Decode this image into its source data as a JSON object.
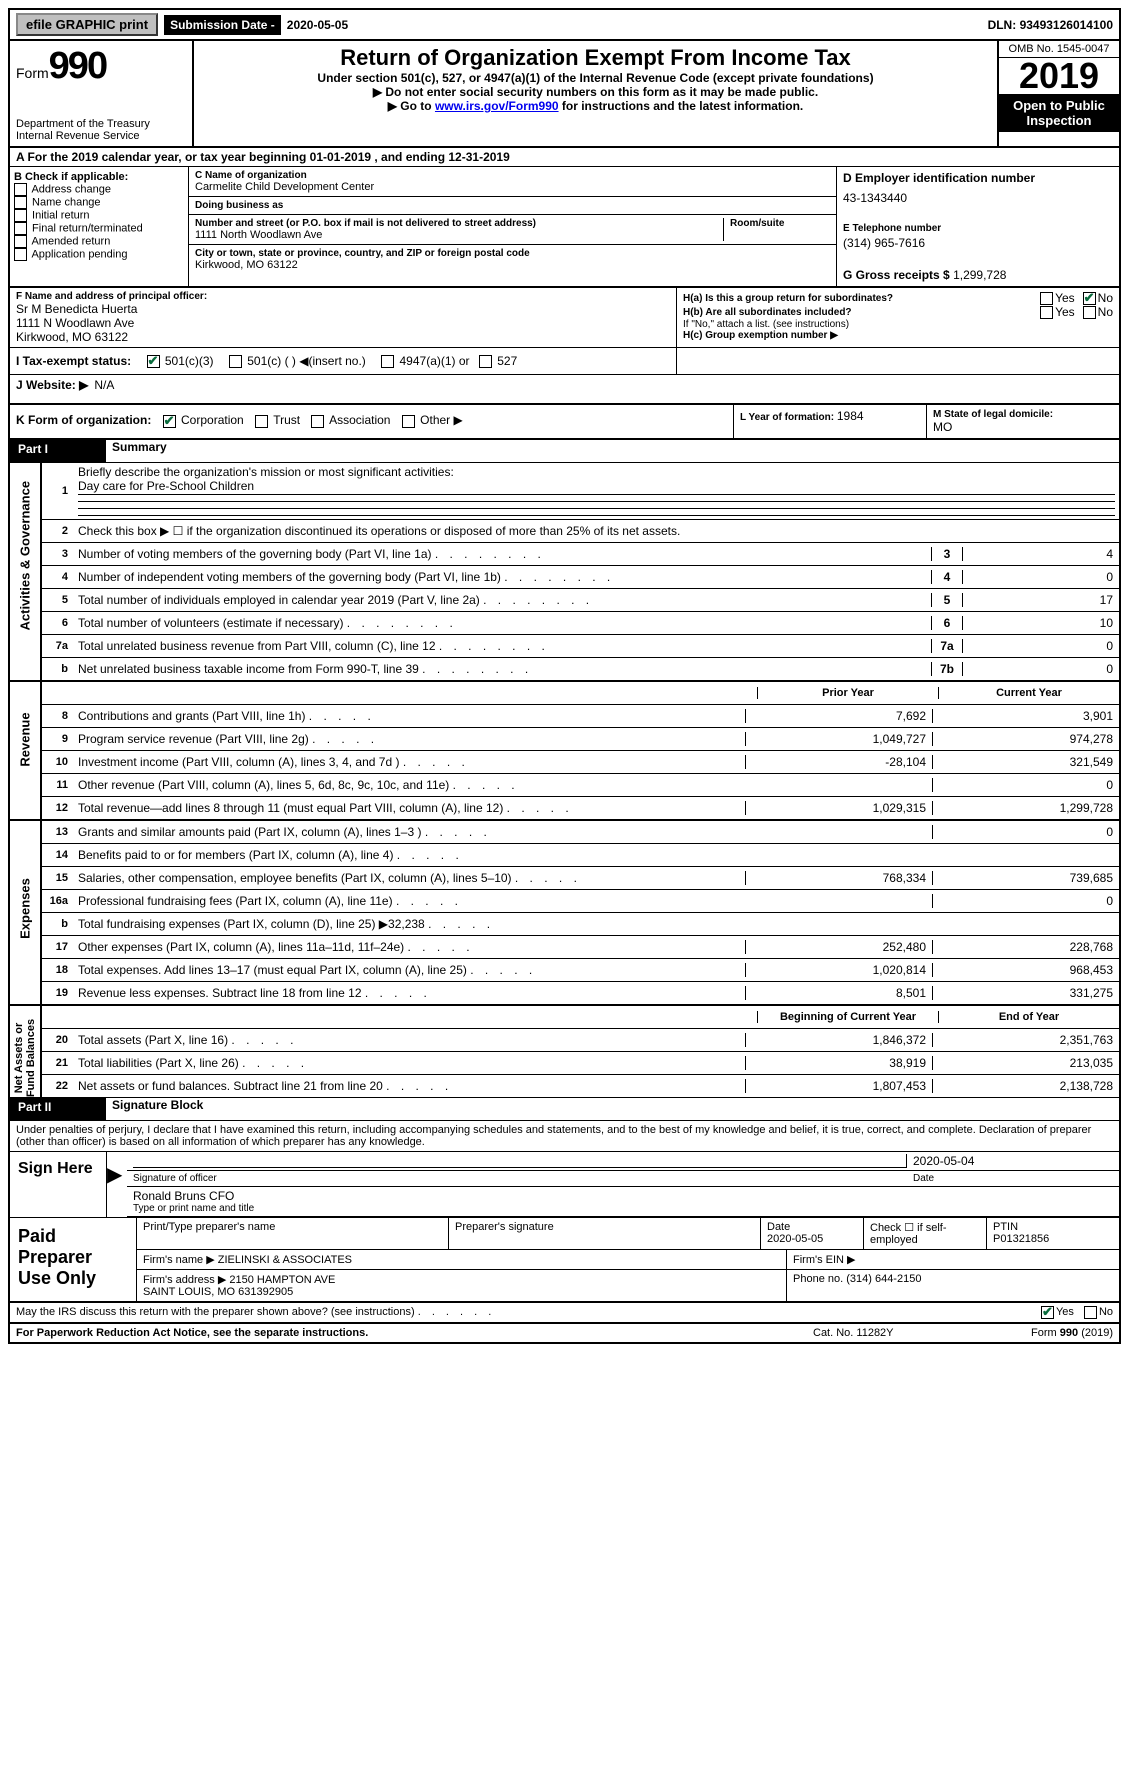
{
  "topbar": {
    "efile_label": "efile GRAPHIC print",
    "sub_date_label": "Submission Date - ",
    "sub_date_value": "2020-05-05",
    "dln_label": "DLN: ",
    "dln_value": "93493126014100"
  },
  "header": {
    "form_label": "Form",
    "form_no": "990",
    "dept": "Department of the Treasury\nInternal Revenue Service",
    "title": "Return of Organization Exempt From Income Tax",
    "subtitle": "Under section 501(c), 527, or 4947(a)(1) of the Internal Revenue Code (except private foundations)",
    "note1": "▶ Do not enter social security numbers on this form as it may be made public.",
    "note2_pre": "▶ Go to ",
    "note2_link": "www.irs.gov/Form990",
    "note2_post": " for instructions and the latest information.",
    "omb": "OMB No. 1545-0047",
    "year": "2019",
    "open_public": "Open to Public Inspection"
  },
  "line_a": "A   For the 2019 calendar year, or tax year beginning 01-01-2019    , and ending 12-31-2019",
  "section_b": {
    "label": "B Check if applicable:",
    "options": [
      "Address change",
      "Name change",
      "Initial return",
      "Final return/terminated",
      "Amended return",
      "Application pending"
    ],
    "c_label": "C Name of organization",
    "org_name": "Carmelite Child Development Center",
    "dba_label": "Doing business as",
    "dba": "",
    "street_label": "Number and street (or P.O. box if mail is not delivered to street address)",
    "room_label": "Room/suite",
    "street": "1111 North Woodlawn Ave",
    "city_label": "City or town, state or province, country, and ZIP or foreign postal code",
    "city": "Kirkwood, MO  63122",
    "d_label": "D Employer identification number",
    "ein": "43-1343440",
    "e_label": "E Telephone number",
    "phone": "(314) 965-7616",
    "g_label": "G Gross receipts $ ",
    "gross": "1,299,728"
  },
  "section_f": {
    "f_label": "F  Name and address of principal officer:",
    "officer": "Sr M Benedicta Huerta\n1111 N Woodlawn Ave\nKirkwood, MO  63122",
    "ha_label": "H(a)  Is this a group return for subordinates?",
    "ha_yes": "Yes",
    "ha_no": "No",
    "hb_label": "H(b)  Are all subordinates included?",
    "hb_yes": "Yes",
    "hb_no": "No",
    "hb_note": "If \"No,\" attach a list. (see instructions)",
    "hc_label": "H(c)  Group exemption number ▶"
  },
  "section_i": {
    "label": "I   Tax-exempt status:",
    "opt_501c3": "501(c)(3)",
    "opt_501c": "501(c) (  ) ◀(insert no.)",
    "opt_4947": "4947(a)(1) or",
    "opt_527": "527"
  },
  "section_j": {
    "label": "J   Website: ▶",
    "value": "N/A"
  },
  "section_k": {
    "label": "K Form of organization:",
    "opts": [
      "Corporation",
      "Trust",
      "Association",
      "Other ▶"
    ],
    "l_label": "L Year of formation: ",
    "l_value": "1984",
    "m_label": "M State of legal domicile:",
    "m_value": "MO"
  },
  "parts": {
    "p1_label": "Part I",
    "p1_title": "Summary",
    "p2_label": "Part II",
    "p2_title": "Signature Block"
  },
  "summary": {
    "mission_label": "Briefly describe the organization's mission or most significant activities:",
    "mission": "Day care for Pre-School Children",
    "line2": "Check this box ▶ ☐  if the organization discontinued its operations or disposed of more than 25% of its net assets.",
    "lines_ag": [
      {
        "num": "3",
        "text": "Number of voting members of the governing body (Part VI, line 1a)",
        "box": "3",
        "val": "4"
      },
      {
        "num": "4",
        "text": "Number of independent voting members of the governing body (Part VI, line 1b)",
        "box": "4",
        "val": "0"
      },
      {
        "num": "5",
        "text": "Total number of individuals employed in calendar year 2019 (Part V, line 2a)",
        "box": "5",
        "val": "17"
      },
      {
        "num": "6",
        "text": "Total number of volunteers (estimate if necessary)",
        "box": "6",
        "val": "10"
      },
      {
        "num": "7a",
        "text": "Total unrelated business revenue from Part VIII, column (C), line 12",
        "box": "7a",
        "val": "0"
      },
      {
        "num": "b",
        "text": "Net unrelated business taxable income from Form 990-T, line 39",
        "box": "7b",
        "val": "0"
      }
    ],
    "col_prior": "Prior Year",
    "col_current": "Current Year",
    "revenue": [
      {
        "num": "8",
        "text": "Contributions and grants (Part VIII, line 1h)",
        "prior": "7,692",
        "curr": "3,901"
      },
      {
        "num": "9",
        "text": "Program service revenue (Part VIII, line 2g)",
        "prior": "1,049,727",
        "curr": "974,278"
      },
      {
        "num": "10",
        "text": "Investment income (Part VIII, column (A), lines 3, 4, and 7d )",
        "prior": "-28,104",
        "curr": "321,549"
      },
      {
        "num": "11",
        "text": "Other revenue (Part VIII, column (A), lines 5, 6d, 8c, 9c, 10c, and 11e)",
        "prior": "",
        "curr": "0"
      },
      {
        "num": "12",
        "text": "Total revenue—add lines 8 through 11 (must equal Part VIII, column (A), line 12)",
        "prior": "1,029,315",
        "curr": "1,299,728"
      }
    ],
    "expenses": [
      {
        "num": "13",
        "text": "Grants and similar amounts paid (Part IX, column (A), lines 1–3 )",
        "prior": "",
        "curr": "0"
      },
      {
        "num": "14",
        "text": "Benefits paid to or for members (Part IX, column (A), line 4)",
        "prior": "",
        "curr": ""
      },
      {
        "num": "15",
        "text": "Salaries, other compensation, employee benefits (Part IX, column (A), lines 5–10)",
        "prior": "768,334",
        "curr": "739,685"
      },
      {
        "num": "16a",
        "text": "Professional fundraising fees (Part IX, column (A), line 11e)",
        "prior": "",
        "curr": "0"
      },
      {
        "num": "b",
        "text": "Total fundraising expenses (Part IX, column (D), line 25) ▶32,238",
        "prior": "GREY",
        "curr": "GREY"
      },
      {
        "num": "17",
        "text": "Other expenses (Part IX, column (A), lines 11a–11d, 11f–24e)",
        "prior": "252,480",
        "curr": "228,768"
      },
      {
        "num": "18",
        "text": "Total expenses. Add lines 13–17 (must equal Part IX, column (A), line 25)",
        "prior": "1,020,814",
        "curr": "968,453"
      },
      {
        "num": "19",
        "text": "Revenue less expenses. Subtract line 18 from line 12",
        "prior": "8,501",
        "curr": "331,275"
      }
    ],
    "col_begin": "Beginning of Current Year",
    "col_end": "End of Year",
    "netassets": [
      {
        "num": "20",
        "text": "Total assets (Part X, line 16)",
        "prior": "1,846,372",
        "curr": "2,351,763"
      },
      {
        "num": "21",
        "text": "Total liabilities (Part X, line 26)",
        "prior": "38,919",
        "curr": "213,035"
      },
      {
        "num": "22",
        "text": "Net assets or fund balances. Subtract line 21 from line 20",
        "prior": "1,807,453",
        "curr": "2,138,728"
      }
    ],
    "sidebar_labels": {
      "ag": "Activities & Governance",
      "rev": "Revenue",
      "exp": "Expenses",
      "na": "Net Assets or\nFund Balances"
    }
  },
  "sig": {
    "perjury": "Under penalties of perjury, I declare that I have examined this return, including accompanying schedules and statements, and to the best of my knowledge and belief, it is true, correct, and complete. Declaration of preparer (other than officer) is based on all information of which preparer has any knowledge.",
    "sign_here": "Sign Here",
    "sig_officer_label": "Signature of officer",
    "date_label": "Date",
    "date_value": "2020-05-04",
    "name_title": "Ronald Bruns  CFO",
    "name_label": "Type or print name and title"
  },
  "paid": {
    "label": "Paid Preparer Use Only",
    "col1": "Print/Type preparer's name",
    "col2": "Preparer's signature",
    "col3_label": "Date",
    "col3_value": "2020-05-05",
    "col4_label": "Check ☐  if self-employed",
    "col5_label": "PTIN",
    "col5_value": "P01321856",
    "firm_name_label": "Firm's name    ▶ ",
    "firm_name": "ZIELINSKI & ASSOCIATES",
    "firm_ein_label": "Firm's EIN ▶",
    "firm_addr_label": "Firm's address ▶ ",
    "firm_addr": "2150 HAMPTON AVE\nSAINT LOUIS, MO  631392905",
    "phone_label": "Phone no. ",
    "phone": "(314) 644-2150"
  },
  "footer": {
    "discuss": "May the IRS discuss this return with the preparer shown above? (see instructions)",
    "yes": "Yes",
    "no": "No",
    "paperwork": "For Paperwork Reduction Act Notice, see the separate instructions.",
    "cat": "Cat. No. 11282Y",
    "form": "Form 990 (2019)"
  }
}
